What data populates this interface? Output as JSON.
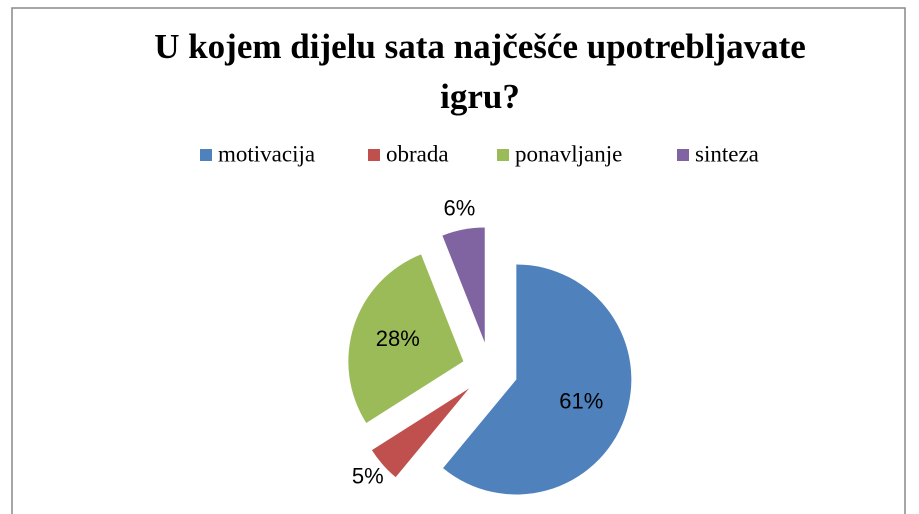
{
  "chart_data": {
    "type": "pie",
    "title": "U kojem dijelu sata najčešće upotrebljavate igru?",
    "categories": [
      "motivacija",
      "obrada",
      "ponavljanje",
      "sinteza"
    ],
    "values": [
      61,
      5,
      28,
      6
    ],
    "value_labels": [
      "61%",
      "5%",
      "28%",
      "6%"
    ],
    "colors": [
      "#4f81bd",
      "#c0504d",
      "#9bbb59",
      "#8064a2"
    ],
    "legend": "top"
  }
}
